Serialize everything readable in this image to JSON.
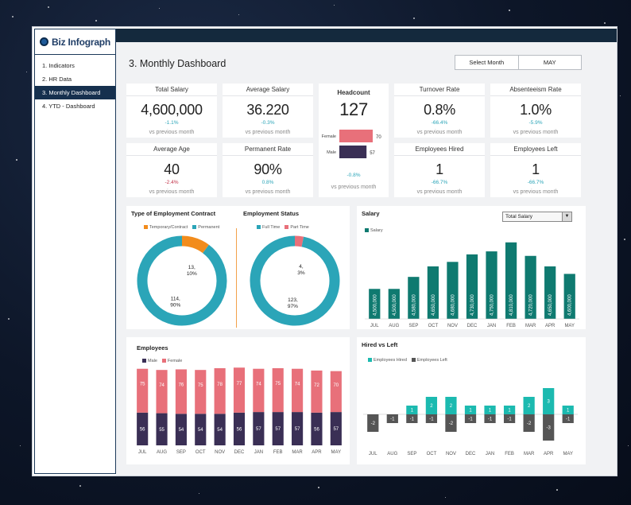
{
  "app": {
    "logo_text": "Biz Infograph"
  },
  "nav": [
    {
      "label": "1. Indicators",
      "active": false
    },
    {
      "label": "2. HR Data",
      "active": false
    },
    {
      "label": "3. Monthly Dashboard",
      "active": true
    },
    {
      "label": "4. YTD - Dashboard",
      "active": false
    }
  ],
  "page": {
    "title": "3. Monthly Dashboard",
    "select_label": "Select Month",
    "select_value": "MAY"
  },
  "kpis": {
    "total_salary": {
      "label": "Total Salary",
      "value": "4,600,000",
      "change": "-1.1%",
      "compare": "vs previous month"
    },
    "average_salary": {
      "label": "Average Salary",
      "value": "36.220",
      "change": "-0.3%",
      "compare": "vs previous month"
    },
    "turnover_rate": {
      "label": "Turnover Rate",
      "value": "0.8%",
      "change": "-66.4%",
      "compare": "vs previous month"
    },
    "absenteeism_rate": {
      "label": "Absenteeism Rate",
      "value": "1.0%",
      "change": "-5.9%",
      "compare": "vs previous month"
    },
    "average_age": {
      "label": "Average Age",
      "value": "40",
      "change": "-2.4%",
      "compare": "vs previous month"
    },
    "permanent_rate": {
      "label": "Permanent Rate",
      "value": "90%",
      "change": "0.8%",
      "compare": "vs previous month"
    },
    "employees_hired": {
      "label": "Employees Hired",
      "value": "1",
      "change": "-66.7%",
      "compare": "vs previous month"
    },
    "employees_left": {
      "label": "Employees Left",
      "value": "1",
      "change": "-66.7%",
      "compare": "vs previous month"
    },
    "headcount": {
      "label": "Headcount",
      "value": "127",
      "change": "-0.8%",
      "compare": "vs previous month",
      "female_label": "Female",
      "female_value": 70,
      "male_label": "Male",
      "male_value": 57
    }
  },
  "colors": {
    "teal": "#2ba5b8",
    "orange": "#f28c1c",
    "salmon": "#e8707a",
    "dark_teal": "#0f7a70",
    "navy": "#3a2f55",
    "red": "#c2344a",
    "hired": "#1cbab0",
    "left": "#555555"
  },
  "charts": {
    "contract": {
      "title": "Type of Employment Contract",
      "legend": [
        "Temporary/Contract",
        "Permanent"
      ]
    },
    "status": {
      "title": "Employment Status",
      "legend": [
        "Full Time",
        "Part Time"
      ]
    },
    "salary": {
      "title": "Salary",
      "legend": "Salary",
      "select_value": "Total Salary"
    },
    "employees": {
      "title": "Employees",
      "legend": [
        "Male",
        "Female"
      ]
    },
    "hired_left": {
      "title": "Hired vs Left",
      "legend": [
        "Employees Hired",
        "Employees Left"
      ]
    }
  },
  "chart_data": [
    {
      "type": "pie",
      "title": "Type of Employment Contract",
      "slices": [
        {
          "name": "Temporary/Contract",
          "value": 13,
          "label": "13,\n10%"
        },
        {
          "name": "Permanent",
          "value": 114,
          "label": "114,\n90%"
        }
      ]
    },
    {
      "type": "pie",
      "title": "Employment Status",
      "slices": [
        {
          "name": "Part Time",
          "value": 4,
          "label": "4,\n3%"
        },
        {
          "name": "Full Time",
          "value": 123,
          "label": "123,\n97%"
        }
      ]
    },
    {
      "type": "bar",
      "title": "Salary",
      "categories": [
        "JUL",
        "AUG",
        "SEP",
        "OCT",
        "NOV",
        "DEC",
        "JAN",
        "FEB",
        "MAR",
        "APR",
        "MAY"
      ],
      "series": [
        {
          "name": "Salary",
          "values": [
            4500000,
            4500000,
            4580000,
            4650000,
            4680000,
            4730000,
            4750000,
            4810000,
            4720000,
            4650000,
            4600000
          ]
        }
      ],
      "labels": [
        "4,500,000",
        "4,500,000",
        "4,580,000",
        "4,650,000",
        "4,680,000",
        "4,730,000",
        "4,750,000",
        "4,810,000",
        "4,720,000",
        "4,650,000",
        "4,600,000"
      ]
    },
    {
      "type": "bar",
      "title": "Employees",
      "categories": [
        "JUL",
        "AUG",
        "SEP",
        "OCT",
        "NOV",
        "DEC",
        "JAN",
        "FEB",
        "MAR",
        "APR",
        "MAY"
      ],
      "series": [
        {
          "name": "Male",
          "values": [
            56,
            55,
            54,
            54,
            54,
            56,
            57,
            57,
            57,
            56,
            57
          ]
        },
        {
          "name": "Female",
          "values": [
            75,
            74,
            76,
            75,
            78,
            77,
            74,
            75,
            74,
            72,
            70
          ]
        }
      ]
    },
    {
      "type": "bar",
      "title": "Hired vs Left",
      "categories": [
        "JUL",
        "AUG",
        "SEP",
        "OCT",
        "NOV",
        "DEC",
        "JAN",
        "FEB",
        "MAR",
        "APR",
        "MAY"
      ],
      "series": [
        {
          "name": "Employees Hired",
          "values": [
            0,
            0,
            1,
            2,
            2,
            1,
            1,
            1,
            2,
            3,
            1
          ]
        },
        {
          "name": "Employees Left",
          "values": [
            -2,
            -1,
            -1,
            -1,
            -2,
            -1,
            -1,
            -1,
            -2,
            -3,
            -1
          ]
        }
      ]
    }
  ]
}
